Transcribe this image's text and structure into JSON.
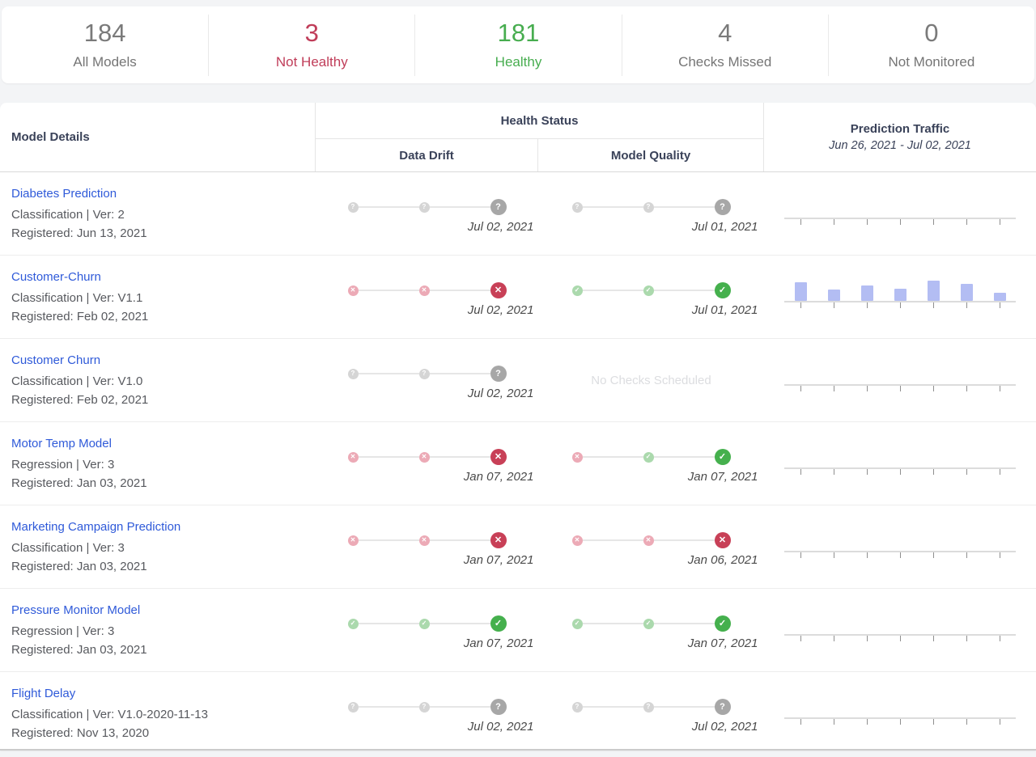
{
  "summary": {
    "cards": [
      {
        "value": "184",
        "label": "All Models",
        "tone": "gray"
      },
      {
        "value": "3",
        "label": "Not Healthy",
        "tone": "red"
      },
      {
        "value": "181",
        "label": "Healthy",
        "tone": "green"
      },
      {
        "value": "4",
        "label": "Checks Missed",
        "tone": "gray"
      },
      {
        "value": "0",
        "label": "Not Monitored",
        "tone": "gray"
      }
    ]
  },
  "table": {
    "headers": {
      "model_details": "Model Details",
      "health_status": "Health Status",
      "data_drift": "Data Drift",
      "model_quality": "Model Quality",
      "prediction_traffic": "Prediction Traffic",
      "traffic_range": "Jun 26, 2021 - Jul 02, 2021"
    },
    "no_checks_label": "No Checks Scheduled",
    "colors": {
      "link_blue": "#2f5ad9",
      "fail_red": "#c84057",
      "pass_green": "#45b04d",
      "unknown_gray": "#a7a7a7",
      "traffic_bar": "#b3bdf3"
    },
    "rows": [
      {
        "name": "Diabetes Prediction",
        "meta": "Classification | Ver: 2",
        "registered": "Registered: Jun 13, 2021",
        "data_drift": {
          "dots": [
            "unknown-light",
            "unknown-light",
            "unknown-strong"
          ],
          "date": "Jul 02, 2021"
        },
        "model_quality": {
          "dots": [
            "unknown-light",
            "unknown-light",
            "unknown-strong"
          ],
          "date": "Jul 01, 2021"
        },
        "traffic": []
      },
      {
        "name": "Customer-Churn",
        "meta": "Classification | Ver: V1.1",
        "registered": "Registered: Feb 02, 2021",
        "data_drift": {
          "dots": [
            "fail-light",
            "fail-light",
            "fail-strong"
          ],
          "date": "Jul 02, 2021"
        },
        "model_quality": {
          "dots": [
            "pass-light",
            "pass-light",
            "pass-strong"
          ],
          "date": "Jul 01, 2021"
        },
        "traffic": [
          23,
          14,
          19,
          15,
          25,
          21,
          10
        ]
      },
      {
        "name": "Customer Churn",
        "meta": "Classification | Ver: V1.0",
        "registered": "Registered: Feb 02, 2021",
        "data_drift": {
          "dots": [
            "unknown-light",
            "unknown-light",
            "unknown-strong"
          ],
          "date": "Jul 02, 2021"
        },
        "model_quality": {
          "none": true
        },
        "traffic": []
      },
      {
        "name": "Motor Temp Model",
        "meta": "Regression | Ver: 3",
        "registered": "Registered: Jan 03, 2021",
        "data_drift": {
          "dots": [
            "fail-light",
            "fail-light",
            "fail-strong"
          ],
          "date": "Jan 07, 2021"
        },
        "model_quality": {
          "dots": [
            "fail-light",
            "pass-light",
            "pass-strong"
          ],
          "date": "Jan 07, 2021"
        },
        "traffic": []
      },
      {
        "name": "Marketing Campaign Prediction",
        "meta": "Classification | Ver: 3",
        "registered": "Registered: Jan 03, 2021",
        "data_drift": {
          "dots": [
            "fail-light",
            "fail-light",
            "fail-strong"
          ],
          "date": "Jan 07, 2021"
        },
        "model_quality": {
          "dots": [
            "fail-light",
            "fail-light",
            "fail-strong"
          ],
          "date": "Jan 06, 2021"
        },
        "traffic": []
      },
      {
        "name": "Pressure Monitor Model",
        "meta": "Regression | Ver: 3",
        "registered": "Registered: Jan 03, 2021",
        "data_drift": {
          "dots": [
            "pass-light",
            "pass-light",
            "pass-strong"
          ],
          "date": "Jan 07, 2021"
        },
        "model_quality": {
          "dots": [
            "pass-light",
            "pass-light",
            "pass-strong"
          ],
          "date": "Jan 07, 2021"
        },
        "traffic": []
      },
      {
        "name": "Flight Delay",
        "meta": "Classification | Ver: V1.0-2020-11-13",
        "registered": "Registered: Nov 13, 2020",
        "data_drift": {
          "dots": [
            "unknown-light",
            "unknown-light",
            "unknown-strong"
          ],
          "date": "Jul 02, 2021"
        },
        "model_quality": {
          "dots": [
            "unknown-light",
            "unknown-light",
            "unknown-strong"
          ],
          "date": "Jul 02, 2021"
        },
        "traffic": []
      }
    ]
  }
}
